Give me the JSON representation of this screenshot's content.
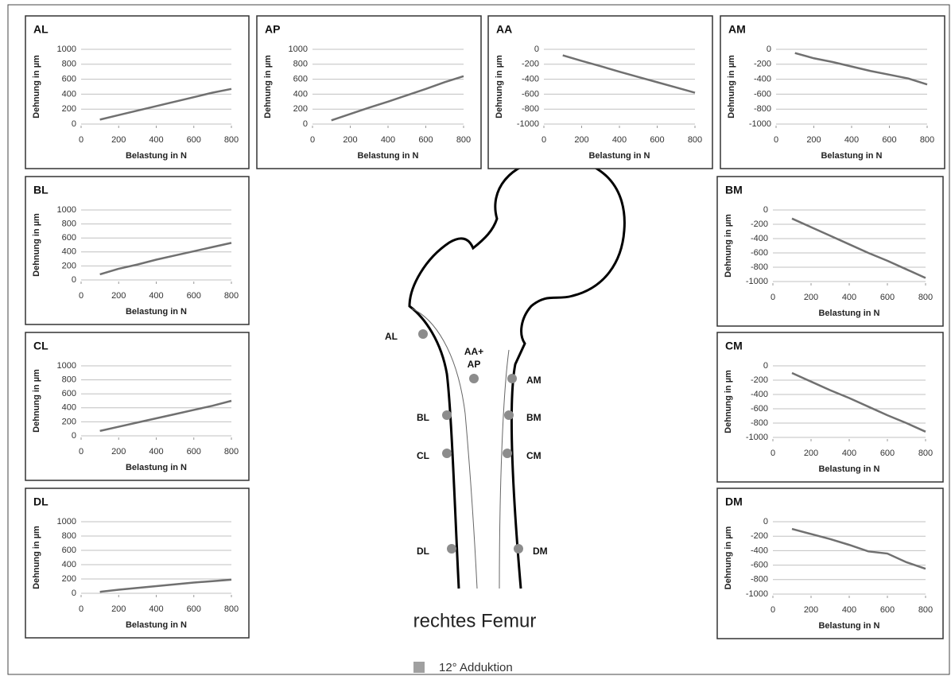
{
  "chart_data": [
    {
      "type": "line",
      "title": "AL",
      "xlabel": "Belastung in N",
      "ylabel": "Dehnung in µm",
      "color": "#707070",
      "grid": true,
      "x": [
        100,
        200,
        300,
        400,
        500,
        600,
        700,
        800
      ],
      "values": [
        60,
        120,
        180,
        240,
        300,
        360,
        420,
        470
      ],
      "xlim": [
        0,
        800
      ],
      "xticks": [
        0,
        200,
        400,
        600,
        800
      ],
      "ylim": [
        0,
        1000
      ],
      "yticks": [
        0,
        200,
        400,
        600,
        800,
        1000
      ]
    },
    {
      "type": "line",
      "title": "AP",
      "xlabel": "Belastung in N",
      "ylabel": "Dehnung in µm",
      "color": "#707070",
      "grid": true,
      "x": [
        100,
        200,
        300,
        400,
        500,
        600,
        700,
        800
      ],
      "values": [
        50,
        135,
        220,
        300,
        385,
        470,
        560,
        640
      ],
      "xlim": [
        0,
        800
      ],
      "xticks": [
        0,
        200,
        400,
        600,
        800
      ],
      "ylim": [
        0,
        1000
      ],
      "yticks": [
        0,
        200,
        400,
        600,
        800,
        1000
      ]
    },
    {
      "type": "line",
      "title": "AA",
      "xlabel": "Belastung in N",
      "ylabel": "Dehnung in µm",
      "color": "#707070",
      "grid": true,
      "x": [
        100,
        200,
        300,
        400,
        500,
        600,
        700,
        800
      ],
      "values": [
        -80,
        -155,
        -225,
        -300,
        -370,
        -440,
        -510,
        -580
      ],
      "xlim": [
        0,
        800
      ],
      "xticks": [
        0,
        200,
        400,
        600,
        800
      ],
      "ylim": [
        -1000,
        0
      ],
      "yticks": [
        0,
        -200,
        -400,
        -600,
        -800,
        -1000
      ]
    },
    {
      "type": "line",
      "title": "AM",
      "xlabel": "Belastung in N",
      "ylabel": "Dehnung in µm",
      "color": "#707070",
      "grid": true,
      "x": [
        100,
        200,
        300,
        400,
        500,
        600,
        700,
        800
      ],
      "values": [
        -50,
        -120,
        -170,
        -230,
        -290,
        -340,
        -390,
        -470
      ],
      "xlim": [
        0,
        800
      ],
      "xticks": [
        0,
        200,
        400,
        600,
        800
      ],
      "ylim": [
        -1000,
        0
      ],
      "yticks": [
        0,
        -200,
        -400,
        -600,
        -800,
        -1000
      ]
    },
    {
      "type": "line",
      "title": "BL",
      "xlabel": "Belastung in N",
      "ylabel": "Dehnung in µm",
      "color": "#707070",
      "grid": true,
      "x": [
        100,
        200,
        300,
        400,
        500,
        600,
        700,
        800
      ],
      "values": [
        80,
        160,
        220,
        290,
        350,
        410,
        470,
        530
      ],
      "xlim": [
        0,
        800
      ],
      "xticks": [
        0,
        200,
        400,
        600,
        800
      ],
      "ylim": [
        0,
        1000
      ],
      "yticks": [
        0,
        200,
        400,
        600,
        800,
        1000
      ]
    },
    {
      "type": "line",
      "title": "BM",
      "xlabel": "Belastung in N",
      "ylabel": "Dehnung in µm",
      "color": "#707070",
      "grid": true,
      "x": [
        100,
        200,
        300,
        400,
        500,
        600,
        700,
        800
      ],
      "values": [
        -120,
        -240,
        -360,
        -480,
        -600,
        -710,
        -830,
        -950
      ],
      "xlim": [
        0,
        800
      ],
      "xticks": [
        0,
        200,
        400,
        600,
        800
      ],
      "ylim": [
        -1000,
        0
      ],
      "yticks": [
        0,
        -200,
        -400,
        -600,
        -800,
        -1000
      ]
    },
    {
      "type": "line",
      "title": "CL",
      "xlabel": "Belastung in N",
      "ylabel": "Dehnung in µm",
      "color": "#707070",
      "grid": true,
      "x": [
        100,
        200,
        300,
        400,
        500,
        600,
        700,
        800
      ],
      "values": [
        70,
        130,
        190,
        250,
        310,
        370,
        430,
        500
      ],
      "xlim": [
        0,
        800
      ],
      "xticks": [
        0,
        200,
        400,
        600,
        800
      ],
      "ylim": [
        0,
        1000
      ],
      "yticks": [
        0,
        200,
        400,
        600,
        800,
        1000
      ]
    },
    {
      "type": "line",
      "title": "CM",
      "xlabel": "Belastung in N",
      "ylabel": "Dehnung in µm",
      "color": "#707070",
      "grid": true,
      "x": [
        100,
        200,
        300,
        400,
        500,
        600,
        700,
        800
      ],
      "values": [
        -100,
        -220,
        -340,
        -450,
        -570,
        -690,
        -800,
        -920
      ],
      "xlim": [
        0,
        800
      ],
      "xticks": [
        0,
        200,
        400,
        600,
        800
      ],
      "ylim": [
        -1000,
        0
      ],
      "yticks": [
        0,
        -200,
        -400,
        -600,
        -800,
        -1000
      ]
    },
    {
      "type": "line",
      "title": "DL",
      "xlabel": "Belastung in N",
      "ylabel": "Dehnung in µm",
      "color": "#707070",
      "grid": true,
      "x": [
        100,
        200,
        300,
        400,
        500,
        600,
        700,
        800
      ],
      "values": [
        20,
        50,
        75,
        100,
        125,
        150,
        170,
        190
      ],
      "xlim": [
        0,
        800
      ],
      "xticks": [
        0,
        200,
        400,
        600,
        800
      ],
      "ylim": [
        0,
        1000
      ],
      "yticks": [
        0,
        200,
        400,
        600,
        800,
        1000
      ]
    },
    {
      "type": "line",
      "title": "DM",
      "xlabel": "Belastung in N",
      "ylabel": "Dehnung in µm",
      "color": "#707070",
      "grid": true,
      "x": [
        100,
        200,
        300,
        400,
        500,
        600,
        700,
        800
      ],
      "values": [
        -100,
        -170,
        -240,
        -320,
        -410,
        -440,
        -560,
        -650
      ],
      "xlim": [
        0,
        800
      ],
      "xticks": [
        0,
        200,
        400,
        600,
        800
      ],
      "ylim": [
        -1000,
        0
      ],
      "yticks": [
        0,
        -200,
        -400,
        -600,
        -800,
        -1000
      ]
    }
  ],
  "diagram": {
    "title": "rechtes Femur",
    "points": [
      {
        "label": "AL"
      },
      {
        "label": [
          "AA+",
          "AP"
        ]
      },
      {
        "label": "AM"
      },
      {
        "label": "BL"
      },
      {
        "label": "BM"
      },
      {
        "label": "CL"
      },
      {
        "label": "CM"
      },
      {
        "label": "DL"
      },
      {
        "label": "DM"
      }
    ]
  },
  "legend": {
    "label": "12° Adduktion",
    "color": "#a0a0a0"
  }
}
